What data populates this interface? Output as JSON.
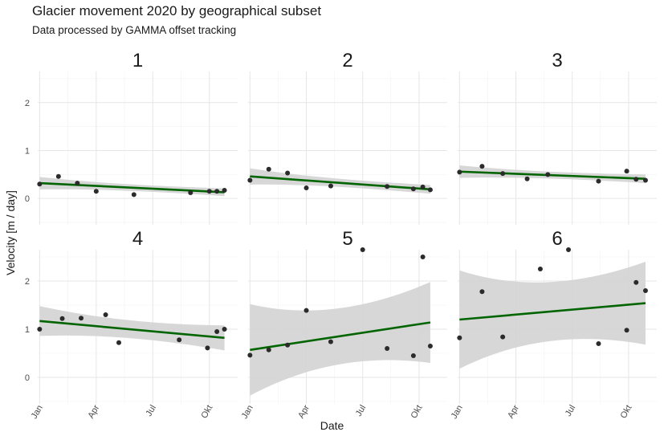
{
  "chart_data": {
    "type": "scatter",
    "title": "Glacier movement 2020 by geographical subset",
    "subtitle": "Data processed by GAMMA offset tracking",
    "xlabel": "Date",
    "ylabel": "Velocity [m / day]",
    "x_ticks": [
      "Jan",
      "Apr",
      "Jul",
      "Okt"
    ],
    "x_tick_months": [
      1,
      4,
      7,
      10
    ],
    "xlim_months": [
      0.9,
      11.5
    ],
    "y_ticks": [
      0,
      1,
      2
    ],
    "ylim": [
      -0.55,
      2.65
    ],
    "grid": true,
    "point_color": "#2b2b2b",
    "line_color": "#006400",
    "band_color": "#d3d3d3",
    "panels": [
      {
        "label": "1",
        "points": [
          [
            1.0,
            0.3
          ],
          [
            2.0,
            0.46
          ],
          [
            3.0,
            0.32
          ],
          [
            4.0,
            0.15
          ],
          [
            6.0,
            0.08
          ],
          [
            9.0,
            0.12
          ],
          [
            10.0,
            0.15
          ],
          [
            10.4,
            0.15
          ],
          [
            10.8,
            0.17
          ]
        ],
        "fit": {
          "x": [
            1.0,
            10.8
          ],
          "y": [
            0.32,
            0.13
          ]
        },
        "band": {
          "upper": [
            0.45,
            0.21
          ],
          "lower": [
            0.19,
            0.05
          ]
        }
      },
      {
        "label": "2",
        "points": [
          [
            1.0,
            0.38
          ],
          [
            2.0,
            0.61
          ],
          [
            3.0,
            0.53
          ],
          [
            4.0,
            0.22
          ],
          [
            5.3,
            0.26
          ],
          [
            8.3,
            0.25
          ],
          [
            9.7,
            0.2
          ],
          [
            10.2,
            0.24
          ],
          [
            10.6,
            0.18
          ]
        ],
        "fit": {
          "x": [
            1.0,
            10.6
          ],
          "y": [
            0.46,
            0.19
          ]
        },
        "band": {
          "upper": [
            0.63,
            0.28
          ],
          "lower": [
            0.29,
            0.1
          ]
        }
      },
      {
        "label": "3",
        "points": [
          [
            1.0,
            0.55
          ],
          [
            2.2,
            0.67
          ],
          [
            3.3,
            0.52
          ],
          [
            4.6,
            0.41
          ],
          [
            5.7,
            0.5
          ],
          [
            8.4,
            0.36
          ],
          [
            9.9,
            0.57
          ],
          [
            10.4,
            0.4
          ],
          [
            10.9,
            0.38
          ]
        ],
        "fit": {
          "x": [
            1.0,
            10.9
          ],
          "y": [
            0.56,
            0.41
          ]
        },
        "band": {
          "upper": [
            0.69,
            0.5
          ],
          "lower": [
            0.43,
            0.32
          ]
        }
      },
      {
        "label": "4",
        "points": [
          [
            1.0,
            1.0
          ],
          [
            2.2,
            1.22
          ],
          [
            3.2,
            1.23
          ],
          [
            4.5,
            1.3
          ],
          [
            5.2,
            0.72
          ],
          [
            8.4,
            0.78
          ],
          [
            9.9,
            0.61
          ],
          [
            10.4,
            0.95
          ],
          [
            10.8,
            1.0
          ]
        ],
        "fit": {
          "x": [
            1.0,
            10.8
          ],
          "y": [
            1.17,
            0.82
          ]
        },
        "band": {
          "upper": [
            1.48,
            1.08
          ],
          "lower": [
            0.86,
            0.56
          ]
        }
      },
      {
        "label": "5",
        "points": [
          [
            1.0,
            0.46
          ],
          [
            2.0,
            0.57
          ],
          [
            3.0,
            0.67
          ],
          [
            4.0,
            1.39
          ],
          [
            5.3,
            0.74
          ],
          [
            7.0,
            2.65
          ],
          [
            8.3,
            0.6
          ],
          [
            9.7,
            0.45
          ],
          [
            10.2,
            2.5
          ],
          [
            10.6,
            0.65
          ]
        ],
        "fit": {
          "x": [
            1.0,
            10.6
          ],
          "y": [
            0.57,
            1.14
          ]
        },
        "band": {
          "upper": [
            1.52,
            1.98
          ],
          "lower": [
            -0.38,
            0.3
          ]
        }
      },
      {
        "label": "6",
        "points": [
          [
            1.0,
            0.82
          ],
          [
            2.2,
            1.78
          ],
          [
            3.3,
            0.84
          ],
          [
            5.3,
            2.25
          ],
          [
            6.8,
            2.65
          ],
          [
            8.4,
            0.7
          ],
          [
            9.9,
            0.98
          ],
          [
            10.4,
            1.97
          ],
          [
            10.9,
            1.8
          ]
        ],
        "fit": {
          "x": [
            1.0,
            10.9
          ],
          "y": [
            1.2,
            1.54
          ]
        },
        "band": {
          "upper": [
            2.22,
            2.4
          ],
          "lower": [
            0.18,
            0.68
          ]
        }
      }
    ]
  }
}
